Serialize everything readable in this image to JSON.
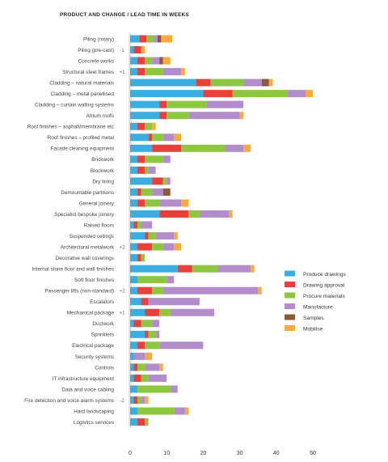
{
  "chart_data": {
    "type": "bar",
    "orientation": "horizontal",
    "stacked": true,
    "title": "PRODUCT AND CHANGE  /  LEAD TIME IN WEEKS",
    "xlim": [
      0,
      50
    ],
    "xticks": [
      0,
      10,
      20,
      30,
      40,
      50
    ],
    "grid": false,
    "legend_position": "right",
    "series": [
      {
        "name": "Produce drawings",
        "color": "#3aaee0"
      },
      {
        "name": "Drawing approval",
        "color": "#e8403a"
      },
      {
        "name": "Procure materials",
        "color": "#8dc63f"
      },
      {
        "name": "Manufacture",
        "color": "#b38ccc"
      },
      {
        "name": "Samples",
        "color": "#8a5a3b"
      },
      {
        "name": "Mobilise",
        "color": "#f7ab3f"
      }
    ],
    "categories": [
      {
        "label": "Piling (rotary)",
        "change": "",
        "values": [
          2.5,
          2,
          2,
          1,
          1,
          3
        ]
      },
      {
        "label": "Piling (pre-cast)",
        "change": "-1",
        "values": [
          1,
          2,
          0,
          0,
          0,
          1
        ]
      },
      {
        "label": "Concrete works",
        "change": "",
        "values": [
          2,
          2,
          2,
          2,
          1,
          2
        ]
      },
      {
        "label": "Structural steel frames",
        "change": "+1",
        "values": [
          2,
          2,
          5,
          5,
          0,
          1
        ]
      },
      {
        "label": "Cladding – natural materials",
        "change": "",
        "values": [
          18,
          4,
          9,
          5,
          2,
          1
        ]
      },
      {
        "label": "Cladding – metal panellised",
        "change": "",
        "values": [
          20,
          8,
          15,
          5,
          0,
          2
        ]
      },
      {
        "label": "Cladding – curtain walling systems",
        "change": "",
        "values": [
          8,
          2,
          11,
          10,
          0,
          0
        ]
      },
      {
        "label": "Atrium roofs",
        "change": "",
        "values": [
          8,
          2,
          6,
          14,
          0,
          1
        ]
      },
      {
        "label": "Roof finishes – asphalt/membrane etc",
        "change": "",
        "values": [
          2,
          2,
          2,
          0,
          0,
          1
        ]
      },
      {
        "label": "Roof finishes – profiled metal",
        "change": "",
        "values": [
          5,
          1,
          3,
          3,
          0,
          2
        ]
      },
      {
        "label": "Facade cleaning equipment",
        "change": "",
        "values": [
          6,
          8,
          12,
          5,
          0,
          2
        ]
      },
      {
        "label": "Brickwork",
        "change": "",
        "values": [
          2,
          2,
          5,
          2,
          0,
          0
        ]
      },
      {
        "label": "Blockwork",
        "change": "",
        "values": [
          2,
          2,
          1,
          2,
          0,
          0
        ]
      },
      {
        "label": "Dry lining",
        "change": "",
        "values": [
          6,
          3,
          1,
          1,
          0,
          0
        ]
      },
      {
        "label": "Demountable partitions",
        "change": "",
        "values": [
          2,
          1,
          3,
          3,
          2,
          0
        ]
      },
      {
        "label": "General joinery",
        "change": "",
        "values": [
          2,
          2,
          4,
          6,
          0,
          2
        ]
      },
      {
        "label": "Specialist bespoke joinery",
        "change": "",
        "values": [
          8,
          8,
          3,
          8,
          0,
          1
        ]
      },
      {
        "label": "Raised floors",
        "change": "",
        "values": [
          1,
          1,
          1,
          3,
          0,
          0
        ]
      },
      {
        "label": "Suspended ceilings",
        "change": "",
        "values": [
          4,
          1,
          2,
          5,
          0,
          1
        ]
      },
      {
        "label": "Architectural metalwork",
        "change": "+2",
        "values": [
          2,
          4,
          3,
          3,
          0,
          2
        ]
      },
      {
        "label": "Decorative wall coverings",
        "change": "",
        "values": [
          2,
          1,
          1,
          0,
          0,
          0
        ]
      },
      {
        "label": "Internal stone floor and wall finishes",
        "change": "",
        "values": [
          13,
          4,
          7,
          9,
          0,
          1
        ]
      },
      {
        "label": "Soft floor finishes",
        "change": "",
        "values": [
          2,
          0,
          8,
          2,
          0,
          0
        ]
      },
      {
        "label": "Passenger lifts (non-standard)",
        "change": "+2",
        "values": [
          2,
          4,
          3,
          26,
          0,
          1
        ]
      },
      {
        "label": "Escalators",
        "change": "",
        "values": [
          3,
          2,
          0,
          14,
          0,
          0
        ]
      },
      {
        "label": "Mechanical package",
        "change": "+1",
        "values": [
          4,
          4,
          3,
          12,
          0,
          0
        ]
      },
      {
        "label": "Ductwork",
        "change": "",
        "values": [
          1,
          2,
          3,
          2,
          0,
          0
        ]
      },
      {
        "label": "Sprinklers",
        "change": "",
        "values": [
          4,
          1,
          2,
          1,
          0,
          0
        ]
      },
      {
        "label": "Electrical package",
        "change": "",
        "values": [
          2,
          2,
          4,
          12,
          0,
          0
        ]
      },
      {
        "label": "Security systems",
        "change": "",
        "values": [
          1,
          0,
          0,
          3,
          0,
          2
        ]
      },
      {
        "label": "Controls",
        "change": "",
        "values": [
          1,
          1,
          2,
          4,
          0,
          1
        ]
      },
      {
        "label": "IT infrastructure equipment",
        "change": "",
        "values": [
          1,
          2,
          2,
          5,
          0,
          0
        ]
      },
      {
        "label": "Data and voice cabling",
        "change": "",
        "values": [
          2,
          0,
          9,
          2,
          0,
          0
        ]
      },
      {
        "label": "Fire detection and voice alarm systems",
        "change": "-2",
        "values": [
          1,
          1,
          1,
          1,
          0,
          1
        ]
      },
      {
        "label": "Hard landscaping",
        "change": "",
        "values": [
          2,
          0,
          10,
          3,
          0,
          1
        ]
      },
      {
        "label": "Logistics services",
        "change": "",
        "values": [
          2,
          2,
          1,
          0,
          0,
          0
        ]
      }
    ]
  }
}
